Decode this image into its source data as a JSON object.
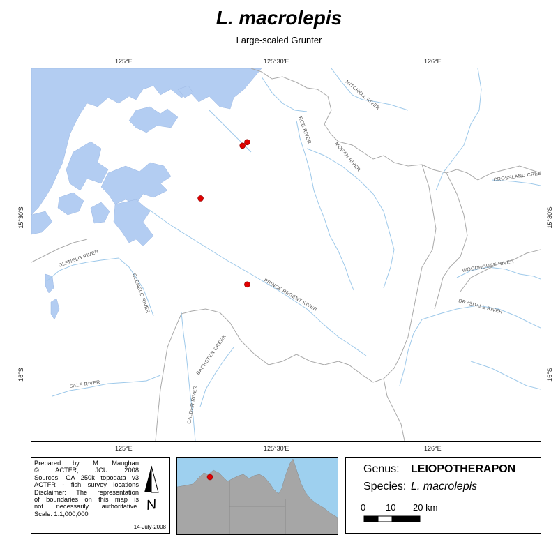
{
  "header": {
    "title": "L. macrolepis",
    "subtitle": "Large-scaled Grunter"
  },
  "graticule": {
    "top": [
      "125°E",
      "125°30'E",
      "126°E"
    ],
    "bottom": [
      "125°E",
      "125°30'E",
      "126°E"
    ],
    "left": [
      "15°30'S",
      "16°S"
    ],
    "right": [
      "15°30'S",
      "16°S"
    ]
  },
  "map": {
    "water_color": "#b3cdf2",
    "river_color": "#9ec9ea",
    "boundary_color": "#a9a9a9",
    "point_color": "#e00000",
    "river_labels": [
      "MITCHELL RIVER",
      "ROE RIVER",
      "MORAN RIVER",
      "CROSSLAND CREEK",
      "GLENELG RIVER",
      "GLENELG RIVER",
      "WOODHOUSE RIVER",
      "DRYSDALE RIVER",
      "PRINCE REGENT RIVER",
      "BACHSTEN CREEK",
      "CALDER RIVER",
      "SALE RIVER"
    ],
    "survey_locations": [
      {
        "lon": 125.545,
        "lat": -15.375
      },
      {
        "lon": 125.56,
        "lat": -15.365
      },
      {
        "lon": 125.41,
        "lat": -15.525
      },
      {
        "lon": 125.56,
        "lat": -15.77
      }
    ]
  },
  "credits": {
    "lines": [
      "Prepared by: M. Maughan",
      "© ACTFR, JCU 2008",
      "Sources: GA 250k topodata v3",
      "ACTFR - fish survey locations",
      "Disclaimer: The representation",
      "of boundaries on this map is",
      "not necessarily authoritative.",
      "Scale: 1:1,000,000"
    ],
    "date": "14-July-2008",
    "north_symbol": "N"
  },
  "inset": {
    "sea_color": "#9ed0ef",
    "land_color": "#a6a6a6",
    "marker_color": "#e00000"
  },
  "info": {
    "genus_label": "Genus:",
    "genus_value": "LEIOPOTHERAPON",
    "species_label": "Species:",
    "species_value": "L. macrolepis",
    "scale_ticks": [
      "0",
      "10",
      "20 km"
    ]
  }
}
